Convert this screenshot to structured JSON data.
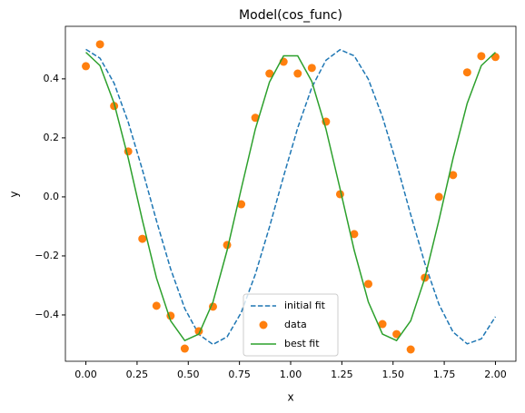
{
  "chart_data": {
    "type": "line",
    "title": "Model(cos_func)",
    "x_label": "x",
    "y_label": "y",
    "x": [
      0,
      0.069,
      0.1379,
      0.2069,
      0.2759,
      0.3448,
      0.4138,
      0.4828,
      0.5517,
      0.6207,
      0.6897,
      0.7586,
      0.8276,
      0.8966,
      0.9655,
      1.0345,
      1.1034,
      1.1724,
      1.2414,
      1.3103,
      1.3793,
      1.4483,
      1.5172,
      1.5862,
      1.6552,
      1.7241,
      1.7931,
      1.8621,
      1.931,
      2.0
    ],
    "series": [
      {
        "name": "initial fit",
        "color": "#1f77b4",
        "style": "dashed",
        "values": [
          0.5,
          0.47,
          0.385,
          0.253,
          0.092,
          -0.081,
          -0.244,
          -0.378,
          -0.466,
          -0.5,
          -0.474,
          -0.392,
          -0.262,
          -0.102,
          0.07,
          0.234,
          0.371,
          0.463,
          0.499,
          0.478,
          0.399,
          0.271,
          0.113,
          -0.06,
          -0.225,
          -0.364,
          -0.458,
          -0.498,
          -0.481,
          -0.406
        ]
      },
      {
        "name": "data",
        "color": "#ff7f0e",
        "style": "markers",
        "values": [
          0.443,
          0.517,
          0.308,
          0.154,
          -0.142,
          -0.369,
          -0.403,
          -0.514,
          -0.455,
          -0.372,
          -0.163,
          -0.025,
          0.268,
          0.418,
          0.458,
          0.418,
          0.437,
          0.255,
          0.009,
          -0.126,
          -0.295,
          -0.431,
          -0.465,
          -0.517,
          -0.274,
          0.0,
          0.074,
          0.422,
          0.477,
          0.474
        ]
      },
      {
        "name": "best fit",
        "color": "#2ca02c",
        "style": "solid",
        "values": [
          0.49,
          0.445,
          0.317,
          0.131,
          -0.079,
          -0.275,
          -0.42,
          -0.487,
          -0.465,
          -0.356,
          -0.181,
          0.027,
          0.23,
          0.389,
          0.478,
          0.478,
          0.391,
          0.23,
          0.027,
          -0.181,
          -0.356,
          -0.465,
          -0.487,
          -0.42,
          -0.275,
          -0.079,
          0.131,
          0.317,
          0.445,
          0.49
        ]
      }
    ],
    "xlim": [
      -0.1,
      2.1
    ],
    "ylim": [
      -0.557,
      0.578
    ],
    "xticks": [
      {
        "value": 0,
        "label": "0.00"
      },
      {
        "value": 0.25,
        "label": "0.25"
      },
      {
        "value": 0.5,
        "label": "0.50"
      },
      {
        "value": 0.75,
        "label": "0.75"
      },
      {
        "value": 1,
        "label": "1.00"
      },
      {
        "value": 1.25,
        "label": "1.25"
      },
      {
        "value": 1.5,
        "label": "1.50"
      },
      {
        "value": 1.75,
        "label": "1.75"
      },
      {
        "value": 2,
        "label": "2.00"
      }
    ],
    "yticks": [
      {
        "value": -0.4,
        "label": "−0.4"
      },
      {
        "value": -0.2,
        "label": "−0.2"
      },
      {
        "value": 0,
        "label": "0.0"
      },
      {
        "value": 0.2,
        "label": "0.2"
      },
      {
        "value": 0.4,
        "label": "0.4"
      }
    ],
    "legend": "lower center"
  }
}
